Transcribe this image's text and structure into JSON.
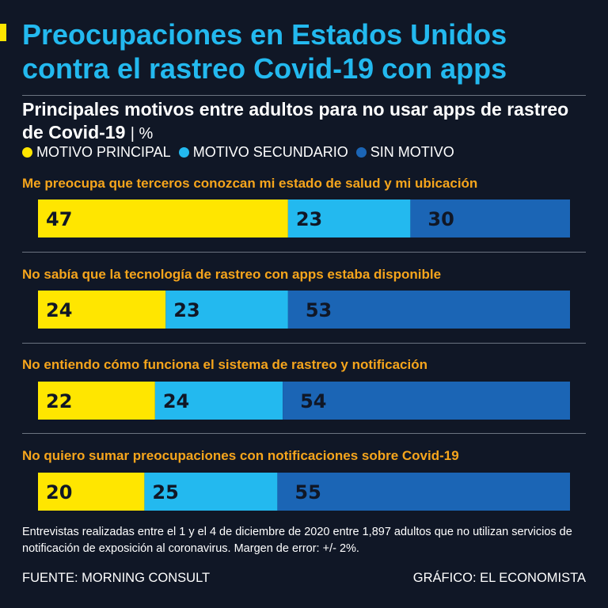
{
  "header": {
    "title": "Preocupaciones en Estados Unidos contra el rastreo Covid-19 con apps",
    "subtitle": "Principales motivos entre adultos para no usar apps de rastreo de Covid-19",
    "unit": "| %"
  },
  "colors": {
    "background": "#101726",
    "title": "#23b9ef",
    "category_label": "#f6a51c",
    "motivo_principal": "#ffe600",
    "motivo_secundario": "#23b9ef",
    "sin_motivo": "#1b65b5"
  },
  "chart_data": {
    "type": "bar",
    "orientation": "horizontal",
    "stacked": true,
    "title": "Principales motivos entre adultos para no usar apps de rastreo de Covid-19",
    "unit": "%",
    "xlim": [
      0,
      100
    ],
    "legend_position": "top-left",
    "categories": [
      "Me preocupa que terceros conozcan mi estado de salud y mi ubicación",
      "No sabía que la tecnología de rastreo con apps estaba disponible",
      "No entiendo cómo funciona el sistema de rastreo y notificación",
      "No quiero sumar preocupaciones con notificaciones sobre Covid-19"
    ],
    "series": [
      {
        "name": "MOTIVO PRINCIPAL",
        "color": "#ffe600",
        "values": [
          47,
          24,
          22,
          20
        ]
      },
      {
        "name": "MOTIVO SECUNDARIO",
        "color": "#23b9ef",
        "values": [
          23,
          23,
          24,
          25
        ]
      },
      {
        "name": "SIN MOTIVO",
        "color": "#1b65b5",
        "values": [
          30,
          53,
          54,
          55
        ]
      }
    ]
  },
  "footer": {
    "note": "Entrevistas realizadas entre el 1 y el 4 de diciembre de 2020 entre 1,897 adultos que no utilizan servicios de notificación de exposición al coronavirus. Margen de error: +/- 2%.",
    "source": "FUENTE: MORNING CONSULT",
    "credit": "GRÁFICO: EL ECONOMISTA"
  }
}
